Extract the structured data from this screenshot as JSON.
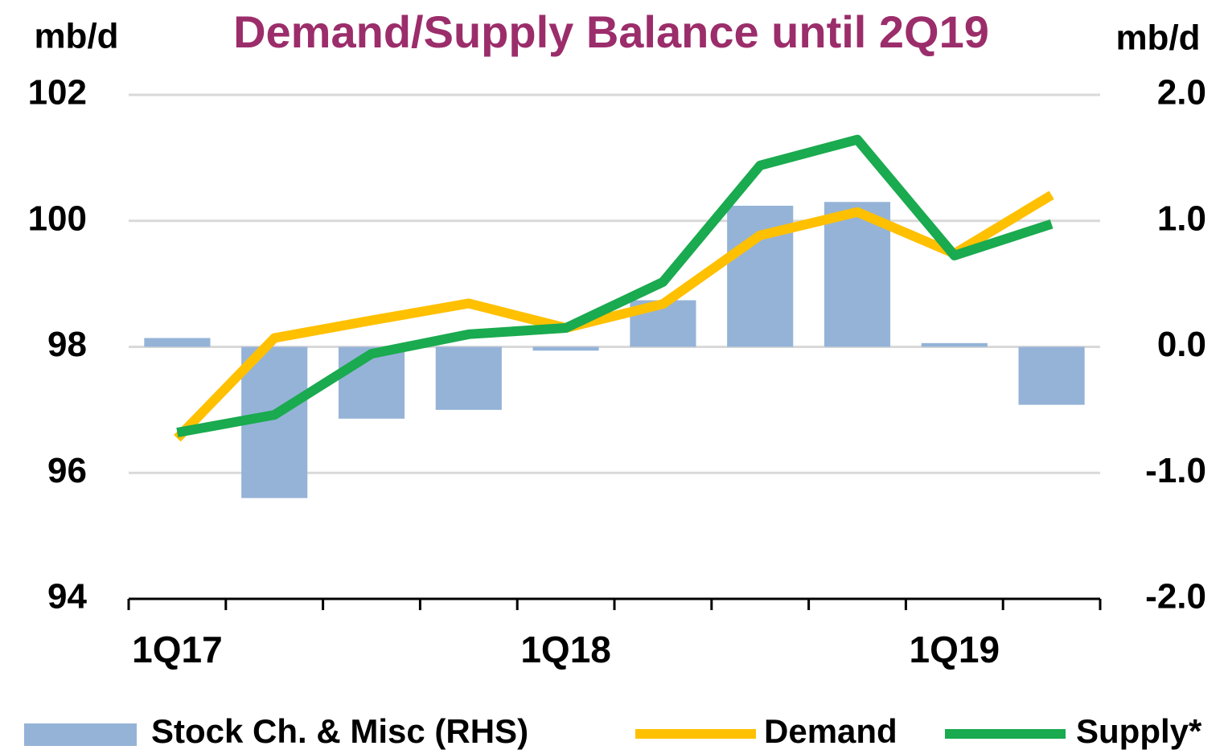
{
  "chart_data": {
    "type": "bar-line",
    "title": "Demand/Supply Balance until 2Q19",
    "ylabel": "mb/d",
    "y2label": "mb/d",
    "categories": [
      "1Q17",
      null,
      null,
      null,
      "1Q18",
      null,
      null,
      null,
      "1Q19",
      null
    ],
    "series": [
      {
        "name": "Stock Ch. & Misc (RHS)",
        "color": "#95b3d7",
        "axis": "y2",
        "kind": "bar",
        "values": [
          0.07,
          -1.2,
          -0.57,
          -0.5,
          -0.03,
          0.37,
          1.12,
          1.15,
          0.03,
          -0.46
        ]
      },
      {
        "name": "Demand",
        "color": "#ffc000",
        "kind": "line",
        "values": [
          96.55,
          98.14,
          98.42,
          98.69,
          98.3,
          98.68,
          99.77,
          100.14,
          99.48,
          100.41
        ]
      },
      {
        "name": "Supply*",
        "color": "#1aaa4f",
        "kind": "line",
        "values": [
          96.64,
          96.92,
          97.89,
          98.2,
          98.3,
          99.03,
          100.88,
          101.29,
          99.45,
          99.95
        ]
      }
    ],
    "ylim": [
      94,
      102
    ],
    "yticks": [
      94,
      96,
      98,
      100,
      102
    ],
    "y2lim": [
      -2,
      2
    ],
    "y2ticks": [
      {
        "value": -2,
        "label": "-2.0"
      },
      {
        "value": -1,
        "label": "-1.0"
      },
      {
        "value": 0,
        "label": "0.0"
      },
      {
        "value": 1,
        "label": "1.0"
      },
      {
        "value": 2,
        "label": "2.0"
      }
    ],
    "grid": true,
    "legend": "bottom"
  }
}
